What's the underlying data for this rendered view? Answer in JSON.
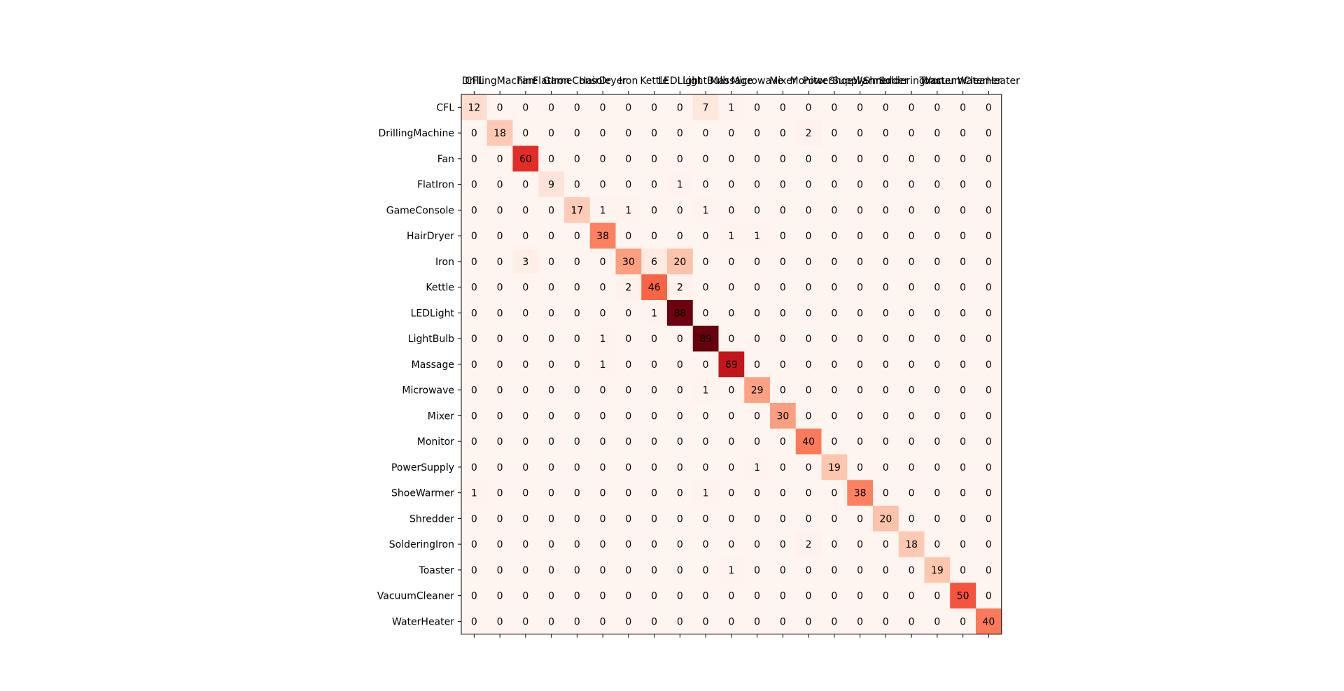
{
  "chart_data": {
    "type": "heatmap",
    "colormap": "Reds",
    "row_labels": [
      "CFL",
      "DrillingMachine",
      "Fan",
      "FlatIron",
      "GameConsole",
      "HairDryer",
      "Iron",
      "Kettle",
      "LEDLight",
      "LightBulb",
      "Massage",
      "Microwave",
      "Mixer",
      "Monitor",
      "PowerSupply",
      "ShoeWarmer",
      "Shredder",
      "SolderingIron",
      "Toaster",
      "VacuumCleaner",
      "WaterHeater"
    ],
    "column_labels": [
      "CFL",
      "DrillingMachine",
      "Fan",
      "FlatIron",
      "GameConsole",
      "HairDryer",
      "Iron",
      "Kettle",
      "LEDLight",
      "LightBulb",
      "Massage",
      "Microwave",
      "Mixer",
      "Monitor",
      "PowerSupply",
      "ShoeWarmer",
      "Shredder",
      "SolderingIron",
      "Toaster",
      "VacuumCleaner",
      "WaterHeater"
    ],
    "values": [
      [
        12,
        0,
        0,
        0,
        0,
        0,
        0,
        0,
        0,
        7,
        1,
        0,
        0,
        0,
        0,
        0,
        0,
        0,
        0,
        0,
        0
      ],
      [
        0,
        18,
        0,
        0,
        0,
        0,
        0,
        0,
        0,
        0,
        0,
        0,
        0,
        2,
        0,
        0,
        0,
        0,
        0,
        0,
        0
      ],
      [
        0,
        0,
        60,
        0,
        0,
        0,
        0,
        0,
        0,
        0,
        0,
        0,
        0,
        0,
        0,
        0,
        0,
        0,
        0,
        0,
        0
      ],
      [
        0,
        0,
        0,
        9,
        0,
        0,
        0,
        0,
        1,
        0,
        0,
        0,
        0,
        0,
        0,
        0,
        0,
        0,
        0,
        0,
        0
      ],
      [
        0,
        0,
        0,
        0,
        17,
        1,
        1,
        0,
        0,
        1,
        0,
        0,
        0,
        0,
        0,
        0,
        0,
        0,
        0,
        0,
        0
      ],
      [
        0,
        0,
        0,
        0,
        0,
        38,
        0,
        0,
        0,
        0,
        1,
        1,
        0,
        0,
        0,
        0,
        0,
        0,
        0,
        0,
        0
      ],
      [
        0,
        0,
        3,
        0,
        0,
        0,
        30,
        6,
        20,
        0,
        0,
        0,
        0,
        0,
        0,
        0,
        0,
        0,
        0,
        0,
        0
      ],
      [
        0,
        0,
        0,
        0,
        0,
        0,
        2,
        46,
        2,
        0,
        0,
        0,
        0,
        0,
        0,
        0,
        0,
        0,
        0,
        0,
        0
      ],
      [
        0,
        0,
        0,
        0,
        0,
        0,
        0,
        1,
        88,
        0,
        0,
        0,
        0,
        0,
        0,
        0,
        0,
        0,
        0,
        0,
        0
      ],
      [
        0,
        0,
        0,
        0,
        0,
        1,
        0,
        0,
        0,
        89,
        0,
        0,
        0,
        0,
        0,
        0,
        0,
        0,
        0,
        0,
        0
      ],
      [
        0,
        0,
        0,
        0,
        0,
        1,
        0,
        0,
        0,
        0,
        69,
        0,
        0,
        0,
        0,
        0,
        0,
        0,
        0,
        0,
        0
      ],
      [
        0,
        0,
        0,
        0,
        0,
        0,
        0,
        0,
        0,
        1,
        0,
        29,
        0,
        0,
        0,
        0,
        0,
        0,
        0,
        0,
        0
      ],
      [
        0,
        0,
        0,
        0,
        0,
        0,
        0,
        0,
        0,
        0,
        0,
        0,
        30,
        0,
        0,
        0,
        0,
        0,
        0,
        0,
        0
      ],
      [
        0,
        0,
        0,
        0,
        0,
        0,
        0,
        0,
        0,
        0,
        0,
        0,
        0,
        40,
        0,
        0,
        0,
        0,
        0,
        0,
        0
      ],
      [
        0,
        0,
        0,
        0,
        0,
        0,
        0,
        0,
        0,
        0,
        0,
        1,
        0,
        0,
        19,
        0,
        0,
        0,
        0,
        0,
        0
      ],
      [
        1,
        0,
        0,
        0,
        0,
        0,
        0,
        0,
        0,
        1,
        0,
        0,
        0,
        0,
        0,
        38,
        0,
        0,
        0,
        0,
        0
      ],
      [
        0,
        0,
        0,
        0,
        0,
        0,
        0,
        0,
        0,
        0,
        0,
        0,
        0,
        0,
        0,
        0,
        20,
        0,
        0,
        0,
        0
      ],
      [
        0,
        0,
        0,
        0,
        0,
        0,
        0,
        0,
        0,
        0,
        0,
        0,
        0,
        2,
        0,
        0,
        0,
        18,
        0,
        0,
        0
      ],
      [
        0,
        0,
        0,
        0,
        0,
        0,
        0,
        0,
        0,
        0,
        1,
        0,
        0,
        0,
        0,
        0,
        0,
        0,
        19,
        0,
        0
      ],
      [
        0,
        0,
        0,
        0,
        0,
        0,
        0,
        0,
        0,
        0,
        0,
        0,
        0,
        0,
        0,
        0,
        0,
        0,
        0,
        50,
        0
      ],
      [
        0,
        0,
        0,
        0,
        0,
        0,
        0,
        0,
        0,
        0,
        0,
        0,
        0,
        0,
        0,
        0,
        0,
        0,
        0,
        0,
        40
      ]
    ],
    "value_range": [
      0,
      89
    ],
    "column_labels_position": "top",
    "grid": false
  }
}
